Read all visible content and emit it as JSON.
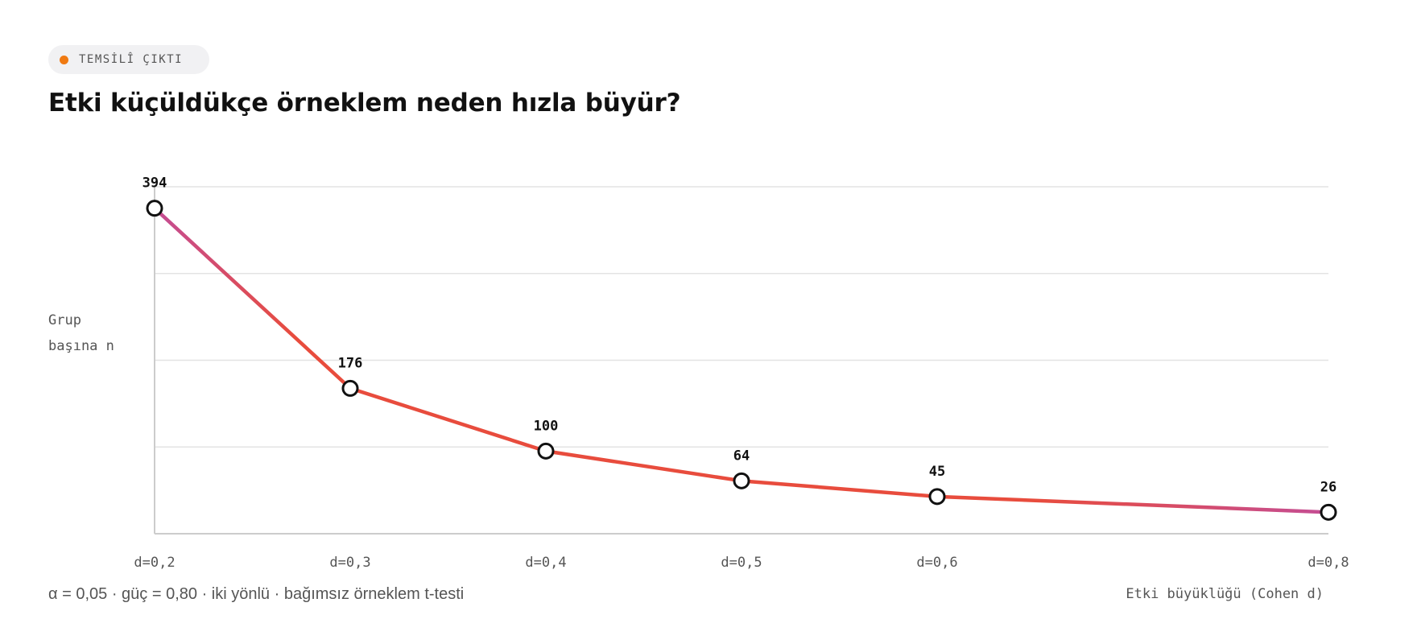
{
  "badge": {
    "label": "TEMSİLÎ ÇIKTI",
    "dot_color": "#f07a12"
  },
  "title": "Etki küçüldükçe örneklem neden hızla büyür?",
  "footnote": "α = 0,05 · güç = 0,80 · iki yönlü · bağımsız örneklem t-testi",
  "chart_data": {
    "type": "line",
    "title": "Etki küçüldükçe örneklem neden hızla büyür?",
    "xlabel": "Etki büyüklüğü (Cohen d)",
    "ylabel_lines": [
      "Grup",
      "başına n"
    ],
    "x": [
      0.2,
      0.3,
      0.4,
      0.5,
      0.6,
      0.8
    ],
    "x_tick_labels": [
      "d=0,2",
      "d=0,3",
      "d=0,4",
      "d=0,5",
      "d=0,6",
      "d=0,8"
    ],
    "xlim": [
      0.2,
      0.8
    ],
    "series": [
      {
        "values": [
          394,
          176,
          100,
          64,
          45,
          26
        ]
      }
    ],
    "ylim": [
      0,
      420
    ],
    "grid": true,
    "colors": {
      "line_end": "#c44d94",
      "line_mid": "#e84c3d",
      "marker_stroke": "#111111",
      "marker_fill": "#ffffff",
      "grid": "#e3e3e3",
      "axis": "#cccccc"
    }
  }
}
